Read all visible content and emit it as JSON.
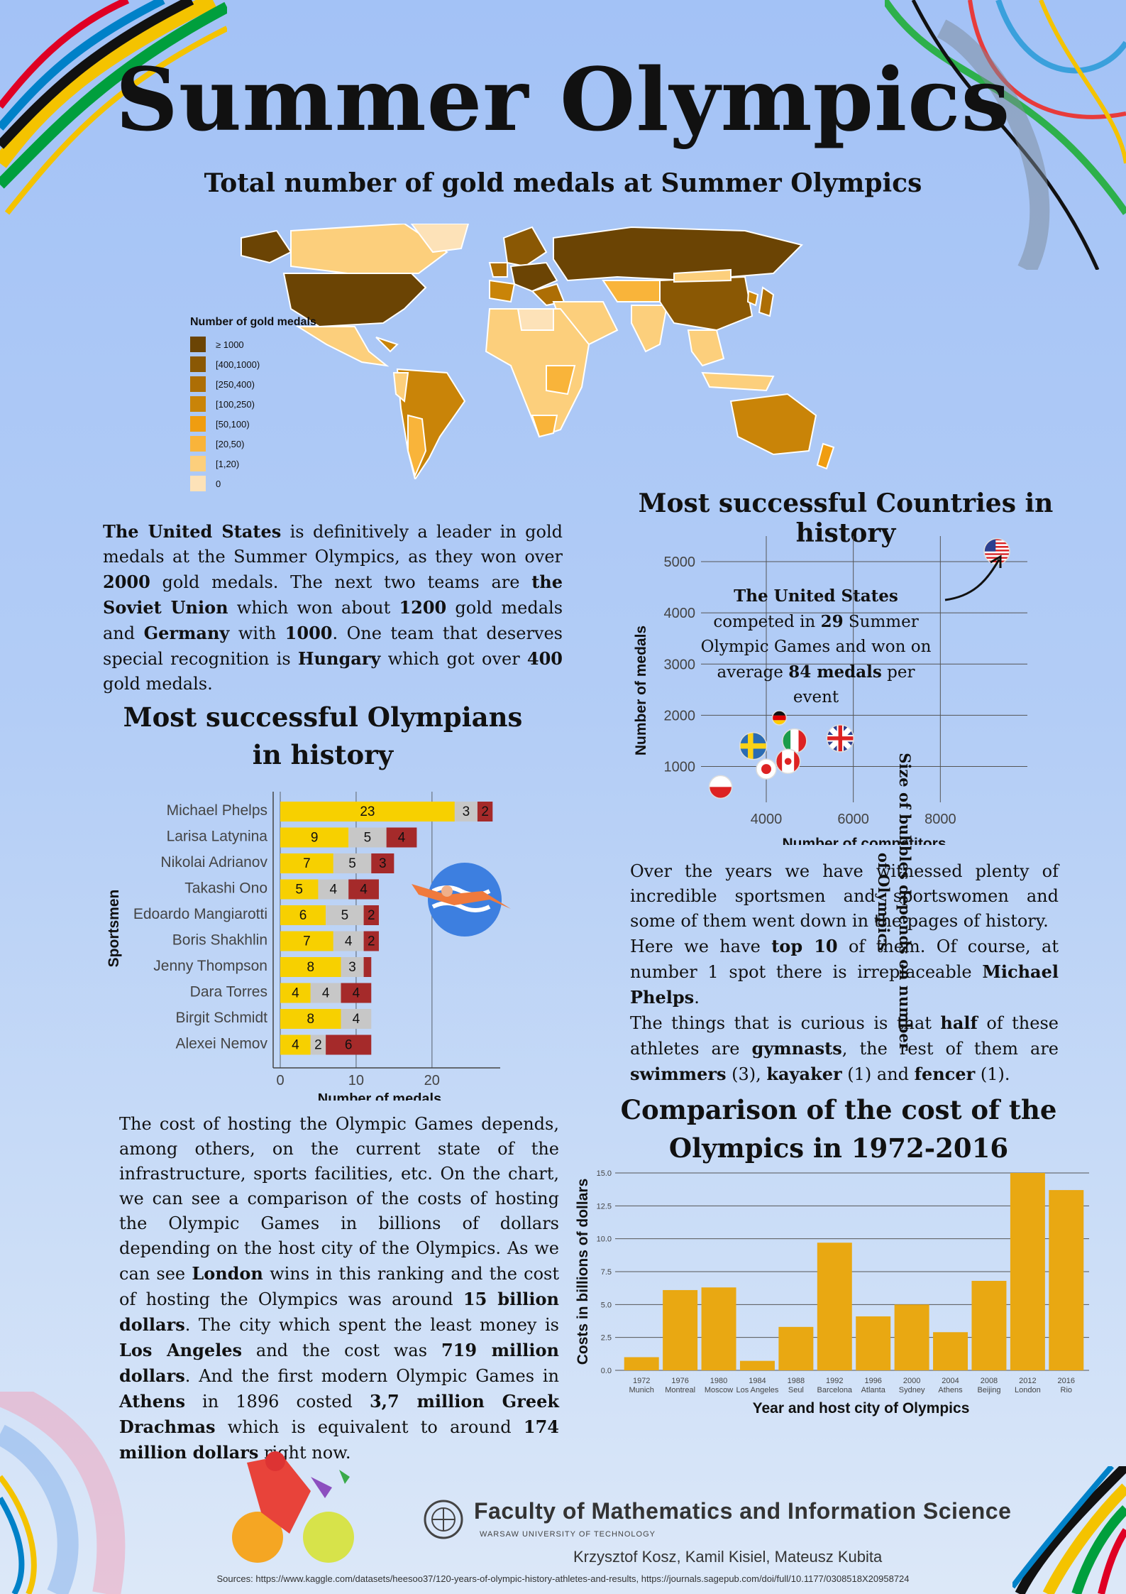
{
  "title": "Summer Olympics",
  "map": {
    "title": "Total number of gold medals at Summer Olympics",
    "legend_title": "Number of gold medals",
    "legend": [
      {
        "label": "≥ 1000",
        "color": "#6b4404"
      },
      {
        "label": "[400,1000)",
        "color": "#8a5804"
      },
      {
        "label": "[250,400)",
        "color": "#ad6e05"
      },
      {
        "label": "[100,250)",
        "color": "#c98408"
      },
      {
        "label": "[50,100)",
        "color": "#f09d10"
      },
      {
        "label": "[20,50)",
        "color": "#f9b43a"
      },
      {
        "label": "[1,20)",
        "color": "#fccf7c"
      },
      {
        "label": "0",
        "color": "#fde2b8"
      }
    ]
  },
  "text_us": [
    {
      "t": "The United States",
      "b": true
    },
    {
      "t": " is definitively a leader in gold medals at the Summer Olympics, as they won over "
    },
    {
      "t": "2000",
      "b": true
    },
    {
      "t": " gold medals. The next two teams are "
    },
    {
      "t": "the Soviet Union",
      "b": true
    },
    {
      "t": " which won about "
    },
    {
      "t": "1200",
      "b": true
    },
    {
      "t": " gold medals and "
    },
    {
      "t": "Germany",
      "b": true
    },
    {
      "t": " with "
    },
    {
      "t": "1000",
      "b": true
    },
    {
      "t": ". One team that deserves special recognition is "
    },
    {
      "t": "Hungary",
      "b": true
    },
    {
      "t": " which got over "
    },
    {
      "t": "400",
      "b": true
    },
    {
      "t": " gold medals."
    }
  ],
  "countries_chart": {
    "title": "Most successful Countries in history",
    "annotation": [
      {
        "t": "The United States",
        "b": true
      },
      {
        "t": " competed in "
      },
      {
        "t": "29",
        "b": true
      },
      {
        "t": " Summer Olympic Games and won on average "
      },
      {
        "t": "84 medals",
        "b": true
      },
      {
        "t": " per event"
      }
    ]
  },
  "athletes_chart": {
    "title_line1": "Most successful Olympians",
    "title_line2": "in history"
  },
  "text_athletes": [
    {
      "t": "Over the years we have witnessed plenty of incredible sportsmen and sportswomen and some of them went down in the pages of history."
    },
    {
      "br": true
    },
    {
      "t": "Here we have "
    },
    {
      "t": "top 10",
      "b": true
    },
    {
      "t": " of them. Of course, at number 1 spot there is irreplaceable "
    },
    {
      "t": "Michael Phelps",
      "b": true
    },
    {
      "t": "."
    },
    {
      "br": true
    },
    {
      "t": "The things that is curious is that "
    },
    {
      "t": "half",
      "b": true
    },
    {
      "t": " of these athletes are "
    },
    {
      "t": "gymnasts",
      "b": true
    },
    {
      "t": ", the rest of them are "
    },
    {
      "t": "swimmers",
      "b": true
    },
    {
      "t": " (3), "
    },
    {
      "t": "kayaker",
      "b": true
    },
    {
      "t": " (1) and "
    },
    {
      "t": "fencer",
      "b": true
    },
    {
      "t": " (1)."
    }
  ],
  "cost_chart": {
    "title_line1": "Comparison of the cost of the",
    "title_line2": "Olympics in 1972-2016"
  },
  "text_cost": [
    {
      "t": "The cost of hosting the Olympic Games depends, among others, on the current state of the infrastructure, sports facilities, etc. On the chart, we can see a comparison of the costs of hosting the Olympic Games in billions of dollars depending on the host city of the Olympics. As we can see "
    },
    {
      "t": "London",
      "b": true
    },
    {
      "t": " wins in this ranking and the cost of hosting the Olympics was around "
    },
    {
      "t": "15 billion dollars",
      "b": true
    },
    {
      "t": ". The city which spent the least money is "
    },
    {
      "t": "Los Angeles",
      "b": true
    },
    {
      "t": " and the cost was "
    },
    {
      "t": "719 million dollars",
      "b": true
    },
    {
      "t": ". And the first modern Olympic Games in "
    },
    {
      "t": "Athens",
      "b": true
    },
    {
      "t": " in 1896 costed "
    },
    {
      "t": "3,7 million Greek Drachmas",
      "b": true
    },
    {
      "t": " which is equivalent to around "
    },
    {
      "t": "174 million dollars",
      "b": true
    },
    {
      "t": " right now."
    }
  ],
  "footer": {
    "faculty": "Faculty of Mathematics and Information Science",
    "university": "WARSAW UNIVERSITY OF TECHNOLOGY",
    "authors": "Krzysztof Kosz, Kamil Kisiel, Mateusz Kubita",
    "sources": "Sources: https://www.kaggle.com/datasets/heesoo37/120-years-of-olympic-history-athletes-and-results, https://journals.sagepub.com/doi/full/10.1177/0308518X20958724"
  },
  "colors": {
    "gold": "#f7d000",
    "silver": "#c7c7c7",
    "bronze": "#a52a2a",
    "cost_bar": "#e9a812"
  },
  "chart_data": [
    {
      "type": "bar",
      "orientation": "horizontal-stacked",
      "categories": [
        "Michael Phelps",
        "Larisa Latynina",
        "Nikolai Adrianov",
        "Takashi Ono",
        "Edoardo Mangiarotti",
        "Boris Shakhlin",
        "Jenny Thompson",
        "Dara Torres",
        "Birgit Schmidt",
        "Alexei Nemov"
      ],
      "series": [
        {
          "name": "gold",
          "values": [
            23,
            9,
            7,
            5,
            6,
            7,
            8,
            4,
            8,
            4
          ]
        },
        {
          "name": "silver",
          "values": [
            3,
            5,
            5,
            4,
            5,
            4,
            3,
            4,
            4,
            2
          ]
        },
        {
          "name": "bronze",
          "values": [
            2,
            4,
            3,
            4,
            2,
            2,
            1,
            4,
            0,
            6
          ]
        }
      ],
      "xlabel": "Number of medals",
      "ylabel": "Sportsmen",
      "xlim": [
        0,
        29
      ],
      "xticks": [
        0,
        10,
        20
      ],
      "grid": true
    },
    {
      "type": "scatter",
      "points": [
        {
          "flag": "usa",
          "x": 9300,
          "y": 5200
        },
        {
          "flag": "germany",
          "x": 4300,
          "y": 1950
        },
        {
          "flag": "italy",
          "x": 4650,
          "y": 1500
        },
        {
          "flag": "britain",
          "x": 5700,
          "y": 1550
        },
        {
          "flag": "sweden",
          "x": 3700,
          "y": 1400
        },
        {
          "flag": "canada",
          "x": 4500,
          "y": 1100
        },
        {
          "flag": "japan",
          "x": 4000,
          "y": 950
        },
        {
          "flag": "poland",
          "x": 2950,
          "y": 600
        }
      ],
      "xlabel": "Number of competitors",
      "ylabel": "Number of medals",
      "right_label": "Size of bubbles depends on number of Olympics",
      "xlim": [
        2500,
        10000
      ],
      "ylim": [
        300,
        5500
      ],
      "xticks": [
        4000,
        6000,
        8000
      ],
      "yticks": [
        1000,
        2000,
        3000,
        4000,
        5000
      ],
      "grid": true
    },
    {
      "type": "bar",
      "categories": [
        "1972 Munich",
        "1976 Montreal",
        "1980 Moscow",
        "1984 Los Angeles",
        "1988 Seul",
        "1992 Barcelona",
        "1996 Atlanta",
        "2000 Sydney",
        "2004 Athens",
        "2008 Beijing",
        "2012 London",
        "2016 Rio"
      ],
      "year_labels": [
        "1972",
        "1976",
        "1980",
        "1984",
        "1988",
        "1992",
        "1996",
        "2000",
        "2004",
        "2008",
        "2012",
        "2016"
      ],
      "city_labels": [
        "Munich",
        "Montreal",
        "Moscow",
        "Los Angeles",
        "Seul",
        "Barcelona",
        "Atlanta",
        "Sydney",
        "Athens",
        "Beijing",
        "London",
        "Rio"
      ],
      "values": [
        1.0,
        6.1,
        6.3,
        0.72,
        3.3,
        9.7,
        4.1,
        5.0,
        2.9,
        6.8,
        15.0,
        13.7
      ],
      "xlabel": "Year and host city of Olympics",
      "ylabel": "Costs in billions of dollars",
      "ylim": [
        0,
        15
      ],
      "yticks": [
        "0.0",
        "2.5",
        "5.0",
        "7.5",
        "10.0",
        "12.5",
        "15.0"
      ],
      "grid": true
    }
  ]
}
